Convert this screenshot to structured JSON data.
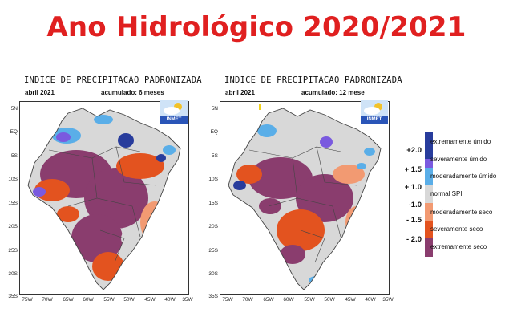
{
  "title": "Ano Hidrológico 2020/2021",
  "colors": {
    "title": "#e02020",
    "extremely_wet": "#283c9c",
    "severely_wet": "#7a5adf",
    "moderately_wet": "#5aaee8",
    "normal": "#d8d8d8",
    "moderately_dry": "#f29a72",
    "severely_dry": "#e3531f",
    "extremely_dry": "#8a3d6e"
  },
  "maps": [
    {
      "title": "INDICE DE PRECIPITACAO PADRONIZADA",
      "date": "abril 2021",
      "period": "acumulado: 6 meses",
      "logo": "INMET",
      "logo_icon": "cloud-sun-icon"
    },
    {
      "title": "INDICE DE PRECIPITACAO PADRONIZADA",
      "date": "abril 2021",
      "period": "acumulado: 12 mese",
      "logo": "INMET",
      "logo_icon": "cloud-sun-icon"
    }
  ],
  "axes": {
    "lat_labels": [
      "5N",
      "EQ",
      "5S",
      "10S",
      "15S",
      "20S",
      "25S",
      "30S",
      "35S"
    ],
    "lon_labels": [
      "75W",
      "70W",
      "65W",
      "60W",
      "55W",
      "50W",
      "45W",
      "40W",
      "35W"
    ]
  },
  "legend": {
    "categories": [
      "extremamente úmido",
      "severamente úmido",
      "moderadamente úmido",
      "normal SPI",
      "moderadamente seco",
      "severamente seco",
      "extremamente seco"
    ],
    "thresholds": [
      "+2.0",
      "+ 1.5",
      "+ 1.0",
      "-1.0",
      "- 1.5",
      "- 2.0"
    ]
  }
}
